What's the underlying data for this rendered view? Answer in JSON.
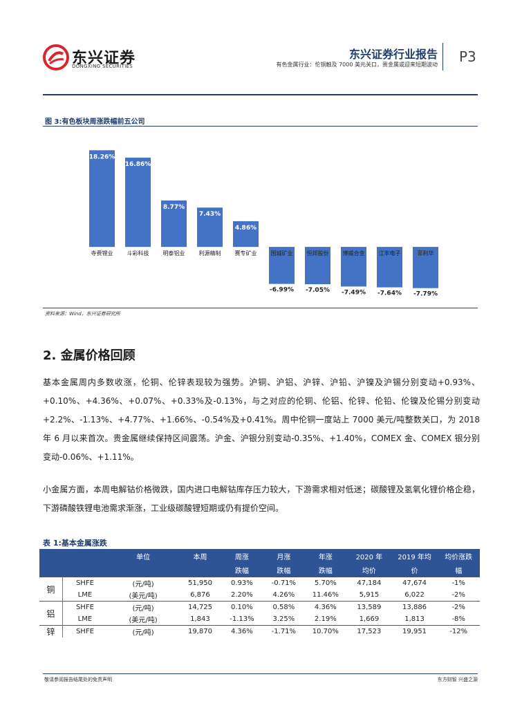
{
  "header": {
    "company_cn": "东兴证券",
    "company_en": "DONGXING SECURITIES",
    "report_title": "东兴证券行业报告",
    "report_subtitle": "有色金属行业：伦铜触及 7000 美元关口，贵金属或迎来短期波动",
    "page": "P3"
  },
  "figure": {
    "title": "图 3:有色板块周涨跌幅前五公司",
    "source": "资料来源：Wind，东兴证券研究所",
    "bar_color": "#4472c4"
  },
  "chart_data": {
    "type": "bar",
    "categories": [
      "寺费锂业",
      "斗彩科技",
      "明泰铝业",
      "利源精制",
      "赛专矿业",
      "国城矿业",
      "恒邦股份",
      "博威合金",
      "江丰电子",
      "菲利华"
    ],
    "values": [
      18.26,
      16.86,
      8.77,
      7.43,
      4.86,
      -6.99,
      -7.05,
      -7.49,
      -7.64,
      -7.79
    ],
    "value_labels": [
      "18.26%",
      "16.86%",
      "8.77%",
      "7.43%",
      "4.86%",
      "-6.99%",
      "-7.05%",
      "-7.49%",
      "-7.64%",
      "-7.79%"
    ],
    "ylim": [
      -9,
      20
    ]
  },
  "section": {
    "title": "2. 金属价格回顾",
    "para1": "基本金属周内多数收涨，伦铜、伦锌表现较为强势。沪铜、沪铝、沪锌、沪铅、沪镍及沪锡分别变动+0.93%、+0.10%、+4.36%、+0.07%、+0.33%及-0.13%，与之对应的伦铜、伦铝、伦锌、伦铅、伦镍及伦锡分别变动+2.2%、-1.13%、+4.77%、+1.66%、-0.54%及+0.41%。周中伦铜一度站上 7000 美元/吨整数关口，为 2018 年 6 月以来首次。贵金属继续保持区间震荡。沪金、沪银分别变动-0.35%、+1.40%，COMEX 金、COMEX 银分别变动-0.06%、+1.11%。",
    "para2": "小金属方面，本周电解钴价格微跌，国内进口电解钴库存压力较大，下游需求相对低迷；碳酸锂及氢氧化锂价格企稳，下游磷酸铁锂电池需求渐涨，工业级碳酸锂短期或仍有提价空间。"
  },
  "table": {
    "title": "表 1:基本金属涨跌",
    "headers": [
      {
        "l1": "",
        "l2": ""
      },
      {
        "l1": "",
        "l2": ""
      },
      {
        "l1": "单位",
        "l2": ""
      },
      {
        "l1": "本周",
        "l2": ""
      },
      {
        "l1": "周涨",
        "l2": "跌幅"
      },
      {
        "l1": "月涨",
        "l2": "跌幅"
      },
      {
        "l1": "年涨",
        "l2": "跌幅"
      },
      {
        "l1": "2020 年",
        "l2": "均价"
      },
      {
        "l1": "2019 年均",
        "l2": "价"
      },
      {
        "l1": "均价涨跌",
        "l2": "幅"
      }
    ],
    "rows": [
      {
        "metal": "铜",
        "exchange": "SHFE",
        "unit": "(元/吨)",
        "week": "51,950",
        "wchg": "0.93%",
        "mchg": "-0.71%",
        "ychg": "5.70%",
        "avg2020": "47,184",
        "avg2019": "47,674",
        "avgchg": "-1%"
      },
      {
        "metal": "",
        "exchange": "LME",
        "unit": "(美元/吨)",
        "week": "6,876",
        "wchg": "2.20%",
        "mchg": "4.26%",
        "ychg": "11.46%",
        "avg2020": "5,915",
        "avg2019": "6,022",
        "avgchg": "-2%"
      },
      {
        "metal": "铝",
        "exchange": "SHFE",
        "unit": "(元/吨)",
        "week": "14,725",
        "wchg": "0.10%",
        "mchg": "0.58%",
        "ychg": "4.36%",
        "avg2020": "13,589",
        "avg2019": "13,886",
        "avgchg": "-2%"
      },
      {
        "metal": "",
        "exchange": "LME",
        "unit": "(美元/吨)",
        "week": "1,843",
        "wchg": "-1.13%",
        "mchg": "3.25%",
        "ychg": "2.19%",
        "avg2020": "1,669",
        "avg2019": "1,813",
        "avgchg": "-8%"
      },
      {
        "metal": "锌",
        "exchange": "SHFE",
        "unit": "(元/吨)",
        "week": "19,870",
        "wchg": "4.36%",
        "mchg": "-1.71%",
        "ychg": "10.70%",
        "avg2020": "17,523",
        "avg2019": "19,951",
        "avgchg": "-12%"
      }
    ]
  },
  "footer": {
    "left": "敬请参阅报告结尾处的免责声明",
    "right": "东方财智  兴盛之源"
  }
}
